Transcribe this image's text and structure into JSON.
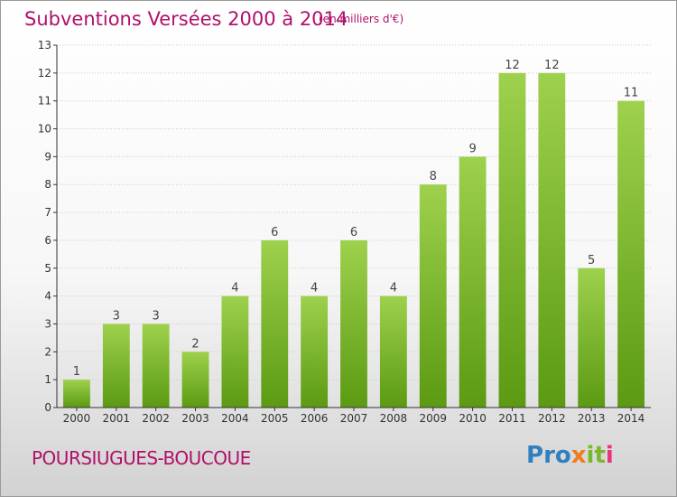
{
  "header": {
    "title": "Subventions Versées 2000 à 2014",
    "subtitle": "(en milliers d'€)"
  },
  "footer": {
    "place": "POURSIUGUES-BOUCOUE",
    "brand": "Proxiti",
    "brand_letters": [
      "P",
      "r",
      "o",
      "x",
      "i",
      "t",
      "i"
    ],
    "brand_colors": [
      "#2f7fc1",
      "#2f7fc1",
      "#2f7fc1",
      "#ee7d1b",
      "#7ab829",
      "#7ab829",
      "#e8347a"
    ]
  },
  "colors": {
    "title": "#b0106a",
    "bar_top": "#9ed14d",
    "bar_bottom": "#5b9a12",
    "axis": "#333333",
    "grid": "#cccccc"
  },
  "chart_data": {
    "type": "bar",
    "categories": [
      "2000",
      "2001",
      "2002",
      "2003",
      "2004",
      "2005",
      "2006",
      "2007",
      "2008",
      "2009",
      "2010",
      "2011",
      "2012",
      "2013",
      "2014"
    ],
    "values": [
      1,
      3,
      3,
      2,
      4,
      6,
      4,
      6,
      4,
      8,
      9,
      12,
      12,
      5,
      11
    ],
    "title": "Subventions Versées 2000 à 2014",
    "ylim": [
      0,
      13
    ],
    "yticks": [
      0,
      1,
      2,
      3,
      4,
      5,
      6,
      7,
      8,
      9,
      10,
      11,
      12,
      13
    ],
    "grid": true,
    "data_labels": true
  }
}
